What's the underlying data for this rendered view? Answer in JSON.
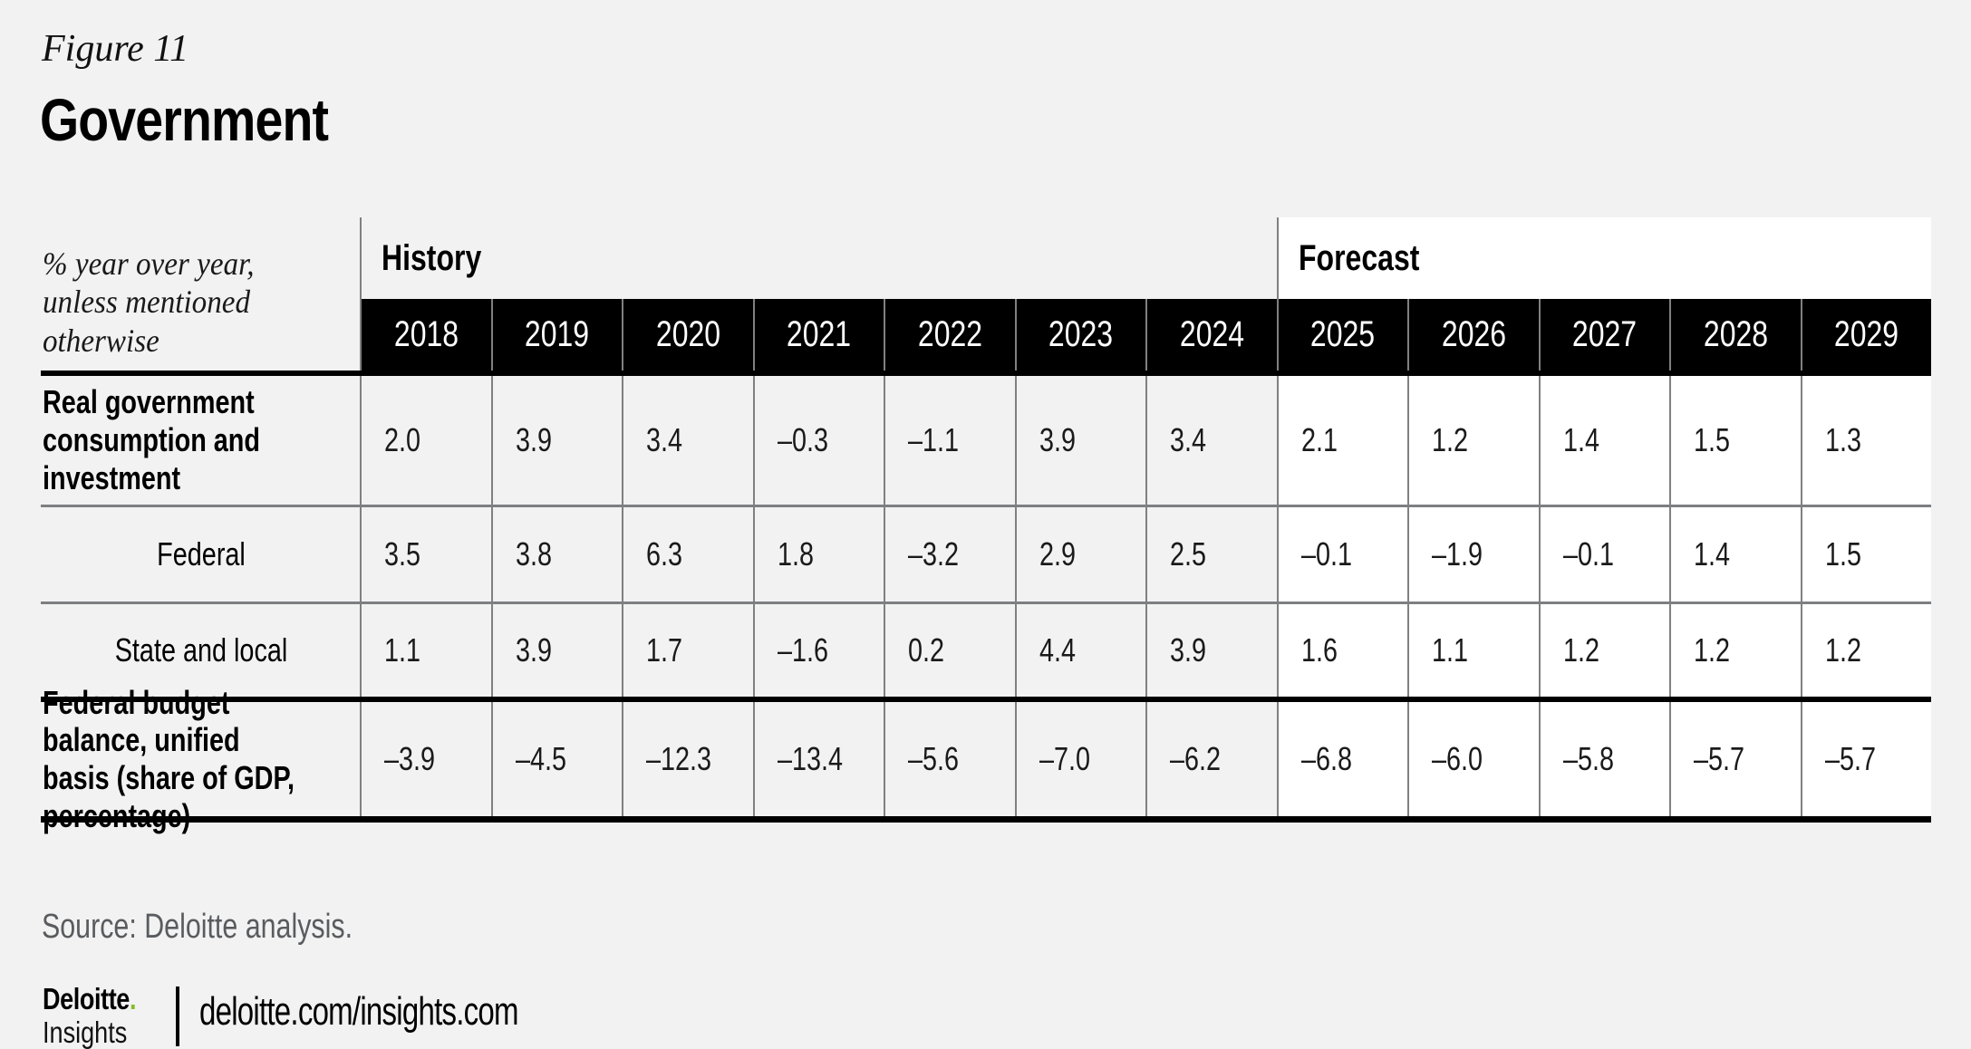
{
  "header": {
    "figure_label": "Figure 11",
    "title": "Government"
  },
  "table": {
    "unit_note": "% year over year, unless mentioned otherwise",
    "history_label": "History",
    "forecast_label": "Forecast",
    "years": [
      "2018",
      "2019",
      "2020",
      "2021",
      "2022",
      "2023",
      "2024",
      "2025",
      "2026",
      "2027",
      "2028",
      "2029"
    ],
    "history_year_count": 7,
    "rows": [
      {
        "label": "Real government consumption and investment",
        "values": [
          "2.0",
          "3.9",
          "3.4",
          "–0.3",
          "–1.1",
          "3.9",
          "3.4",
          "2.1",
          "1.2",
          "1.4",
          "1.5",
          "1.3"
        ]
      },
      {
        "label": "Federal",
        "values": [
          "3.5",
          "3.8",
          "6.3",
          "1.8",
          "–3.2",
          "2.9",
          "2.5",
          "–0.1",
          "–1.9",
          "–0.1",
          "1.4",
          "1.5"
        ]
      },
      {
        "label": "State and local",
        "values": [
          "1.1",
          "3.9",
          "1.7",
          "–1.6",
          "0.2",
          "4.4",
          "3.9",
          "1.6",
          "1.1",
          "1.2",
          "1.2",
          "1.2"
        ]
      },
      {
        "label": "Federal budget balance, unified basis (share of GDP, percentage)",
        "values": [
          "–3.9",
          "–4.5",
          "–12.3",
          "–13.4",
          "–5.6",
          "–7.0",
          "–6.2",
          "–6.8",
          "–6.0",
          "–5.8",
          "–5.7",
          "–5.7"
        ]
      }
    ]
  },
  "chart_data": {
    "type": "table",
    "title": "Government",
    "figure_label": "Figure 11",
    "unit_note": "% year over year, unless mentioned otherwise",
    "categories": [
      2018,
      2019,
      2020,
      2021,
      2022,
      2023,
      2024,
      2025,
      2026,
      2027,
      2028,
      2029
    ],
    "column_groups": [
      {
        "label": "History",
        "years": [
          2018,
          2019,
          2020,
          2021,
          2022,
          2023,
          2024
        ]
      },
      {
        "label": "Forecast",
        "years": [
          2025,
          2026,
          2027,
          2028,
          2029
        ]
      }
    ],
    "series": [
      {
        "name": "Real government consumption and investment",
        "values": [
          2.0,
          3.9,
          3.4,
          -0.3,
          -1.1,
          3.9,
          3.4,
          2.1,
          1.2,
          1.4,
          1.5,
          1.3
        ]
      },
      {
        "name": "Federal",
        "values": [
          3.5,
          3.8,
          6.3,
          1.8,
          -3.2,
          2.9,
          2.5,
          -0.1,
          -1.9,
          -0.1,
          1.4,
          1.5
        ]
      },
      {
        "name": "State and local",
        "values": [
          1.1,
          3.9,
          1.7,
          -1.6,
          0.2,
          4.4,
          3.9,
          1.6,
          1.1,
          1.2,
          1.2,
          1.2
        ]
      },
      {
        "name": "Federal budget balance, unified basis (share of GDP, percentage)",
        "values": [
          -3.9,
          -4.5,
          -12.3,
          -13.4,
          -5.6,
          -7.0,
          -6.2,
          -6.8,
          -6.0,
          -5.8,
          -5.7,
          -5.7
        ]
      }
    ],
    "source": "Source: Deloitte analysis."
  },
  "footer": {
    "source": "Source: Deloitte analysis.",
    "logo": {
      "name": "Deloitte",
      "dot": ".",
      "sub": "Insights"
    },
    "url": "deloitte.com/insights.com"
  },
  "colors": {
    "page_bg": "#f2f2f2",
    "forecast_bg": "#ffffff",
    "year_header_bg": "#000000",
    "grid_line": "#808080",
    "accent_green": "#86BC25",
    "source_text": "#595c5f"
  }
}
